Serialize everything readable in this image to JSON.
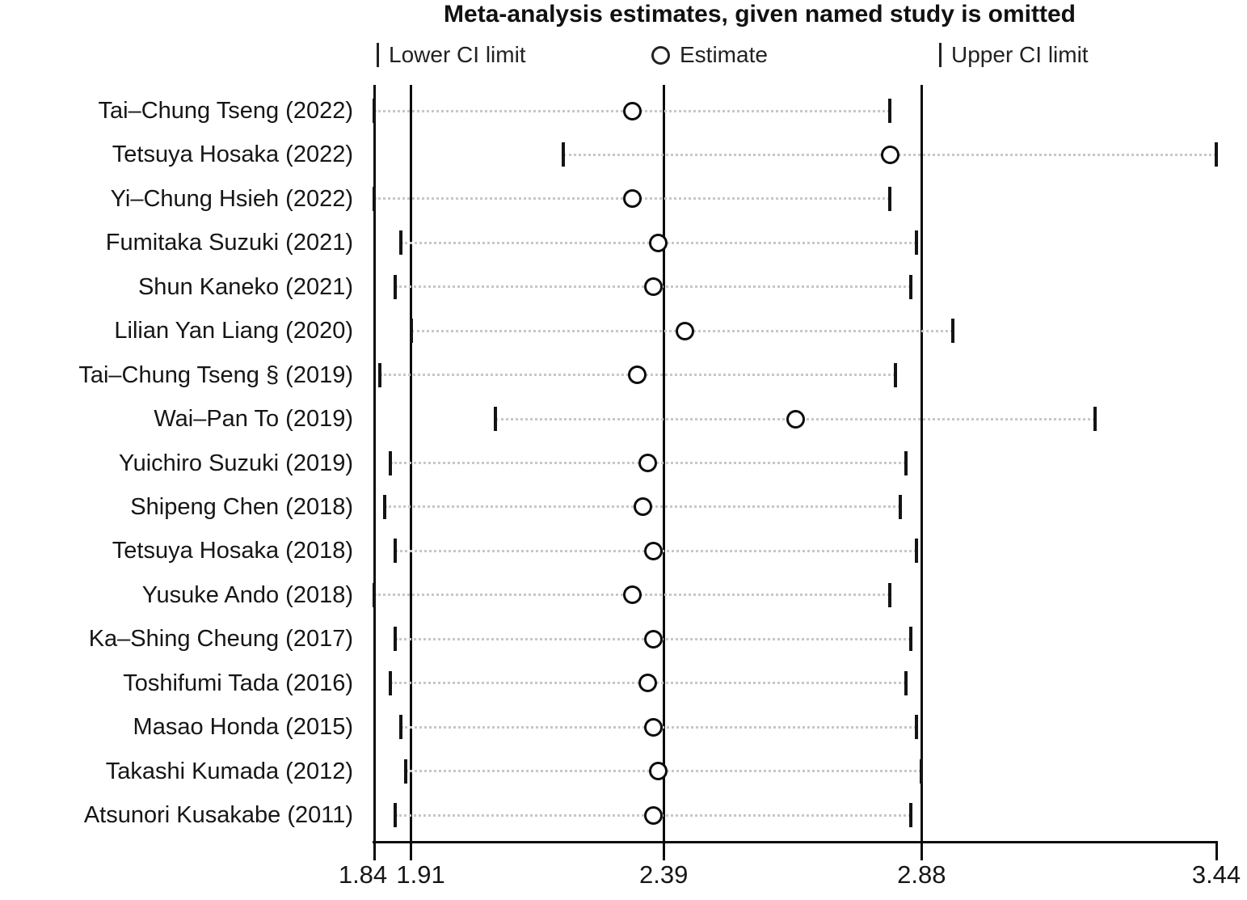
{
  "title": "Meta-analysis estimates, given named study is omitted",
  "legend": {
    "lower_label": "Lower CI limit",
    "estimate_label": "Estimate",
    "upper_label": "Upper CI limit"
  },
  "colors": {
    "text": "#161616",
    "line": "#0c0c0c",
    "dotted_line": "#c7c7c7",
    "background": "#ffffff"
  },
  "chart_data": {
    "type": "forest-leave-one-out",
    "title": "Meta-analysis estimates, given named study is omitted",
    "xlim": [
      1.84,
      3.44
    ],
    "axis_ticks": [
      1.84,
      1.91,
      2.39,
      2.88,
      3.44
    ],
    "axis_tick_labels": [
      "1.84",
      "1.91",
      "2.39",
      "2.88",
      "3.44"
    ],
    "reference_lines": [
      1.91,
      2.39,
      2.88
    ],
    "grid": "horizontal-dotted",
    "legend_position": "top",
    "studies": [
      {
        "name": "Tai–Chung Tseng (2022)",
        "lower": 1.84,
        "estimate": 2.33,
        "upper": 2.82
      },
      {
        "name": "Tetsuya Hosaka (2022)",
        "lower": 2.2,
        "estimate": 2.82,
        "upper": 3.44
      },
      {
        "name": "Yi–Chung Hsieh (2022)",
        "lower": 1.84,
        "estimate": 2.33,
        "upper": 2.82
      },
      {
        "name": "Fumitaka Suzuki (2021)",
        "lower": 1.89,
        "estimate": 2.38,
        "upper": 2.87
      },
      {
        "name": "Shun Kaneko (2021)",
        "lower": 1.88,
        "estimate": 2.37,
        "upper": 2.86
      },
      {
        "name": "Lilian Yan Liang (2020)",
        "lower": 1.91,
        "estimate": 2.43,
        "upper": 2.94
      },
      {
        "name": "Tai–Chung Tseng § (2019)",
        "lower": 1.85,
        "estimate": 2.34,
        "upper": 2.83
      },
      {
        "name": "Wai–Pan To (2019)",
        "lower": 2.07,
        "estimate": 2.64,
        "upper": 3.21
      },
      {
        "name": "Yuichiro Suzuki (2019)",
        "lower": 1.87,
        "estimate": 2.36,
        "upper": 2.85
      },
      {
        "name": "Shipeng Chen (2018)",
        "lower": 1.86,
        "estimate": 2.35,
        "upper": 2.84
      },
      {
        "name": "Tetsuya Hosaka (2018)",
        "lower": 1.88,
        "estimate": 2.37,
        "upper": 2.87
      },
      {
        "name": "Yusuke Ando (2018)",
        "lower": 1.84,
        "estimate": 2.33,
        "upper": 2.82
      },
      {
        "name": "Ka–Shing Cheung (2017)",
        "lower": 1.88,
        "estimate": 2.37,
        "upper": 2.86
      },
      {
        "name": "Toshifumi Tada (2016)",
        "lower": 1.87,
        "estimate": 2.36,
        "upper": 2.85
      },
      {
        "name": "Masao Honda (2015)",
        "lower": 1.89,
        "estimate": 2.37,
        "upper": 2.87
      },
      {
        "name": "Takashi Kumada (2012)",
        "lower": 1.9,
        "estimate": 2.38,
        "upper": 2.88
      },
      {
        "name": "Atsunori Kusakabe (2011)",
        "lower": 1.88,
        "estimate": 2.37,
        "upper": 2.86
      }
    ]
  }
}
